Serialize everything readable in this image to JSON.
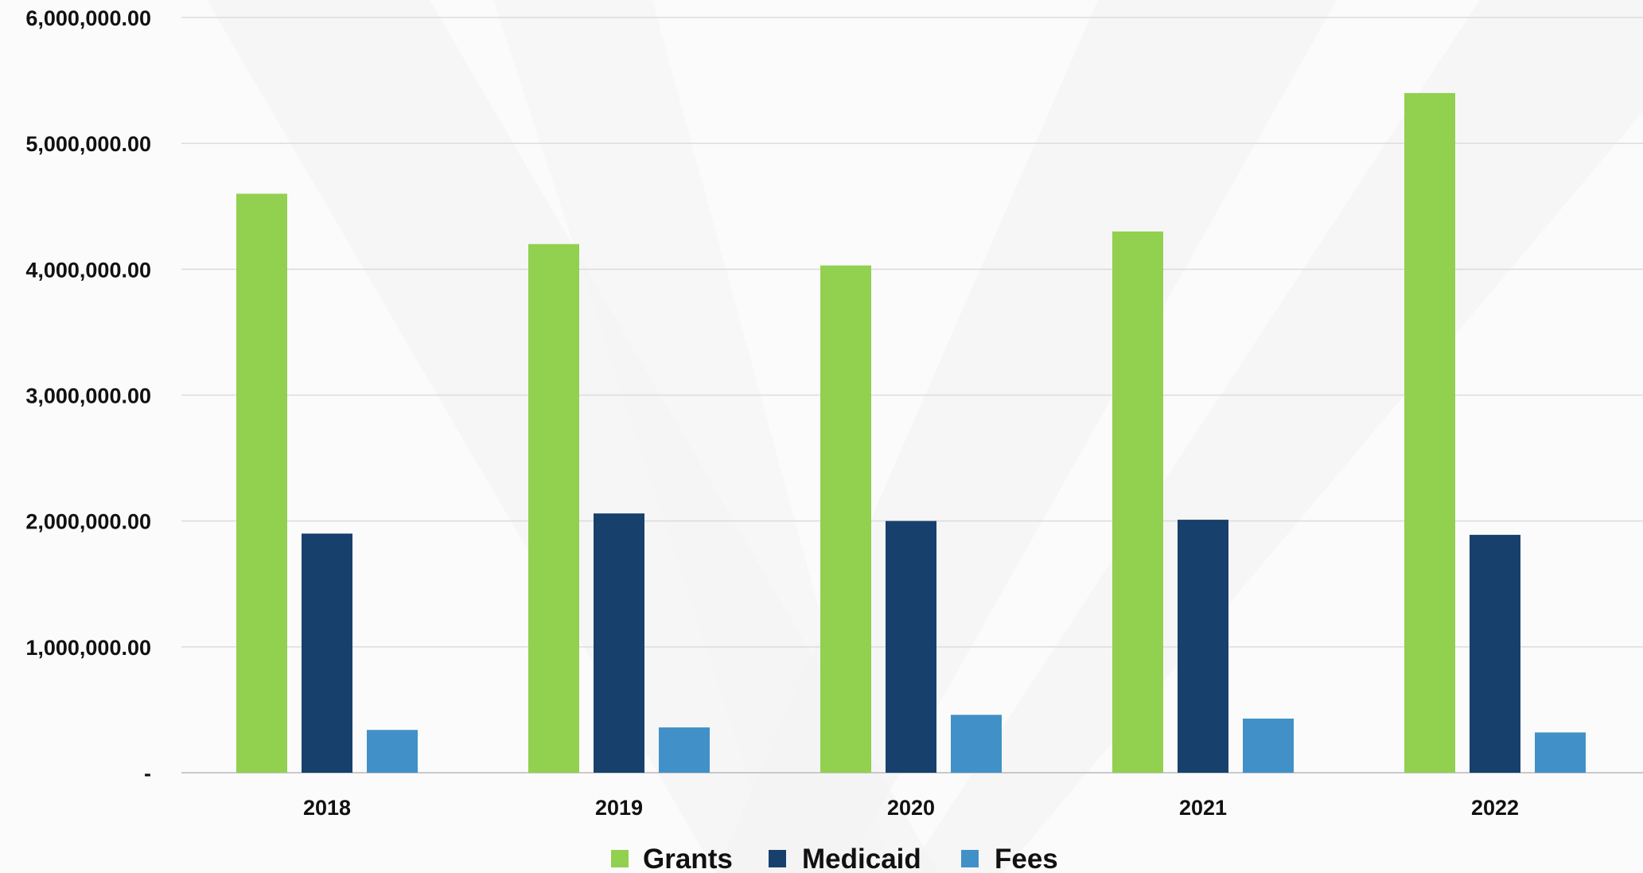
{
  "chart_data": {
    "type": "bar",
    "categories": [
      "2018",
      "2019",
      "2020",
      "2021",
      "2022"
    ],
    "series": [
      {
        "name": "Grants",
        "color": "#92d050",
        "values": [
          4600000,
          4200000,
          4030000,
          4300000,
          5400000
        ]
      },
      {
        "name": "Medicaid",
        "color": "#17406d",
        "values": [
          1900000,
          2060000,
          2000000,
          2010000,
          1890000
        ]
      },
      {
        "name": "Fees",
        "color": "#4191c8",
        "values": [
          340000,
          360000,
          460000,
          430000,
          320000
        ]
      }
    ],
    "yticks": [
      {
        "value": 0,
        "label": "-"
      },
      {
        "value": 1000000,
        "label": "1,000,000.00"
      },
      {
        "value": 2000000,
        "label": "2,000,000.00"
      },
      {
        "value": 3000000,
        "label": "3,000,000.00"
      },
      {
        "value": 4000000,
        "label": "4,000,000.00"
      },
      {
        "value": 5000000,
        "label": "5,000,000.00"
      },
      {
        "value": 6000000,
        "label": "6,000,000.00"
      }
    ],
    "ylim": [
      0,
      6000000
    ],
    "grid": true,
    "legend_position": "bottom",
    "title": "",
    "xlabel": "",
    "ylabel": ""
  }
}
